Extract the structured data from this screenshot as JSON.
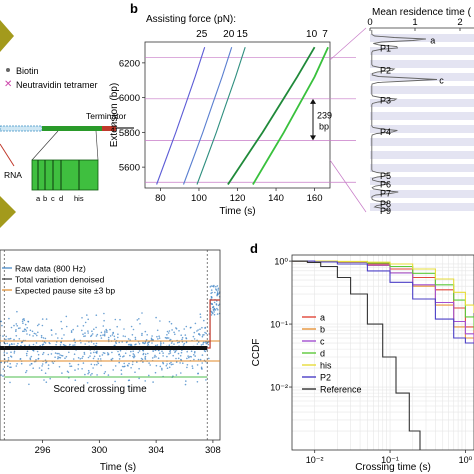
{
  "panels": {
    "b": "b",
    "d": "d"
  },
  "panel_a": {
    "legend": [
      {
        "label": "Biotin",
        "color": "#666666"
      },
      {
        "label": "Neutravidin tetramer",
        "color": "#cc44aa"
      }
    ],
    "terminator_label": "Terminator",
    "rna_label": "RNA",
    "sites": [
      "a",
      "b",
      "c",
      "d",
      "his"
    ],
    "colors": {
      "bead": "#a39a1c",
      "dna": "#2a9a2a",
      "dna_dark": "#0d5a0d",
      "purple": "#b24fb2"
    }
  },
  "chart_data": [
    {
      "id": "b-left",
      "type": "line",
      "title": "Assisting force (pN):",
      "xlabel": "Time (s)",
      "ylabel": "Extension (bp)",
      "xlim": [
        72,
        168
      ],
      "ylim": [
        5480,
        6320
      ],
      "xticks": [
        80,
        100,
        120,
        140,
        160
      ],
      "yticks": [
        5600,
        5800,
        6000,
        6200
      ],
      "reference_lines": [
        6232,
        5993,
        5754,
        5513
      ],
      "reference_line_color": "#c77ac7",
      "annotation": {
        "text": [
          "239",
          "bp"
        ],
        "from": 5993,
        "to": 5754
      },
      "series": [
        {
          "name": "25",
          "color": "#5c5cd6",
          "x": [
            78,
            83,
            88,
            93,
            98,
            103
          ],
          "y": [
            5500,
            5650,
            5800,
            5960,
            6120,
            6290
          ]
        },
        {
          "name": "20",
          "color": "#5a7fd0",
          "x": [
            92,
            97,
            102,
            107,
            112,
            117
          ],
          "y": [
            5500,
            5650,
            5800,
            5960,
            6120,
            6290
          ]
        },
        {
          "name": "15",
          "color": "#2f8f7f",
          "x": [
            99,
            104,
            109,
            114,
            119,
            124
          ],
          "y": [
            5500,
            5650,
            5800,
            5960,
            6120,
            6290
          ]
        },
        {
          "name": "10",
          "color": "#208a3a",
          "x": [
            115,
            124,
            133,
            142,
            151,
            160
          ],
          "y": [
            5500,
            5650,
            5800,
            5960,
            6120,
            6290
          ]
        },
        {
          "name": "7",
          "color": "#39c13d",
          "x": [
            128,
            136,
            144,
            152,
            160,
            167
          ],
          "y": [
            5500,
            5650,
            5800,
            5960,
            6120,
            6290
          ]
        }
      ]
    },
    {
      "id": "b-right",
      "type": "area",
      "title": "Mean residence time (",
      "xlim": [
        0,
        2
      ],
      "xticks": [
        0,
        1,
        2
      ],
      "peaks": [
        {
          "label": "a",
          "y": 6268,
          "value": 1.25
        },
        {
          "label": "P1",
          "y": 6232,
          "value": 0.65
        },
        {
          "label": "P2",
          "y": 6130,
          "value": 0.55
        },
        {
          "label": "c",
          "y": 6085,
          "value": 1.45
        },
        {
          "label": "P3",
          "y": 5993,
          "value": 0.6
        },
        {
          "label": "P4",
          "y": 5850,
          "value": 0.6
        },
        {
          "label": "P5",
          "y": 5650,
          "value": 0.45
        },
        {
          "label": "P6",
          "y": 5610,
          "value": 0.4
        },
        {
          "label": "P7",
          "y": 5570,
          "value": 0.6
        },
        {
          "label": "P8",
          "y": 5520,
          "value": 0.4
        },
        {
          "label": "P9",
          "y": 5490,
          "value": 0.4
        }
      ]
    },
    {
      "id": "c",
      "type": "scatter",
      "xlabel": "Time (s)",
      "xlim": [
        293,
        308.5
      ],
      "xticks": [
        296,
        300,
        304,
        308
      ],
      "legend": [
        {
          "name": "Raw data (800 Hz)",
          "color": "#3b82c4"
        },
        {
          "name": "Total variation denoised",
          "color": "#333333"
        },
        {
          "name": "Expected pause site ±3 bp",
          "color": "#e08a2a"
        }
      ],
      "annotation": "Scored crossing time",
      "crossing_start": 293.3,
      "crossing_end": 307.6,
      "jump_time": 307.8
    },
    {
      "id": "d",
      "type": "line",
      "xlabel": "Crossing time (s)",
      "ylabel": "CCDF",
      "xscale": "log",
      "yscale": "log",
      "xlim": [
        0.005,
        1.3
      ],
      "ylim": [
        0.001,
        1.25
      ],
      "xticks": [
        0.01,
        0.1,
        1
      ],
      "xtick_labels": [
        "10⁻²",
        "10⁻¹",
        "10⁰"
      ],
      "yticks": [
        1,
        0.1,
        0.01
      ],
      "ytick_labels": [
        "10⁰",
        "10⁻¹",
        "10⁻²"
      ],
      "series": [
        {
          "name": "a",
          "color": "#e0473a",
          "x": [
            0.005,
            0.01,
            0.02,
            0.05,
            0.1,
            0.2,
            0.4,
            0.7,
            1.0,
            1.3
          ],
          "y": [
            1,
            0.99,
            0.97,
            0.9,
            0.75,
            0.55,
            0.35,
            0.18,
            0.09,
            0.05
          ]
        },
        {
          "name": "b",
          "color": "#e6953a",
          "x": [
            0.005,
            0.01,
            0.02,
            0.05,
            0.1,
            0.2,
            0.4,
            0.7,
            1.0,
            1.3
          ],
          "y": [
            1,
            0.98,
            0.95,
            0.85,
            0.65,
            0.4,
            0.2,
            0.09,
            0.06,
            0.05
          ]
        },
        {
          "name": "c",
          "color": "#a24fd0",
          "x": [
            0.005,
            0.01,
            0.02,
            0.05,
            0.1,
            0.2,
            0.4,
            0.7,
            1.0,
            1.3
          ],
          "y": [
            1,
            0.99,
            0.96,
            0.86,
            0.65,
            0.42,
            0.22,
            0.11,
            0.07,
            0.05
          ]
        },
        {
          "name": "d",
          "color": "#5cc93a",
          "x": [
            0.005,
            0.01,
            0.02,
            0.05,
            0.1,
            0.2,
            0.4,
            0.7,
            1.0,
            1.3
          ],
          "y": [
            1,
            0.99,
            0.98,
            0.93,
            0.82,
            0.64,
            0.42,
            0.24,
            0.13,
            0.08
          ]
        },
        {
          "name": "his",
          "color": "#e6dc3a",
          "x": [
            0.005,
            0.01,
            0.02,
            0.05,
            0.1,
            0.2,
            0.4,
            0.7,
            1.0,
            1.3
          ],
          "y": [
            1,
            1,
            0.99,
            0.96,
            0.9,
            0.75,
            0.52,
            0.32,
            0.2,
            0.15
          ]
        },
        {
          "name": "P2",
          "color": "#4b3fc6",
          "x": [
            0.005,
            0.01,
            0.02,
            0.05,
            0.1,
            0.2,
            0.4,
            0.7,
            1.0,
            1.3
          ],
          "y": [
            1,
            0.97,
            0.9,
            0.7,
            0.46,
            0.25,
            0.12,
            0.06,
            0.05,
            0.05
          ]
        },
        {
          "name": "Reference",
          "color": "#333333",
          "x": [
            0.005,
            0.008,
            0.012,
            0.02,
            0.03,
            0.05,
            0.08,
            0.12,
            0.18,
            0.25
          ],
          "y": [
            1,
            0.95,
            0.82,
            0.55,
            0.3,
            0.1,
            0.03,
            0.008,
            0.002,
            0.001
          ]
        }
      ]
    }
  ]
}
